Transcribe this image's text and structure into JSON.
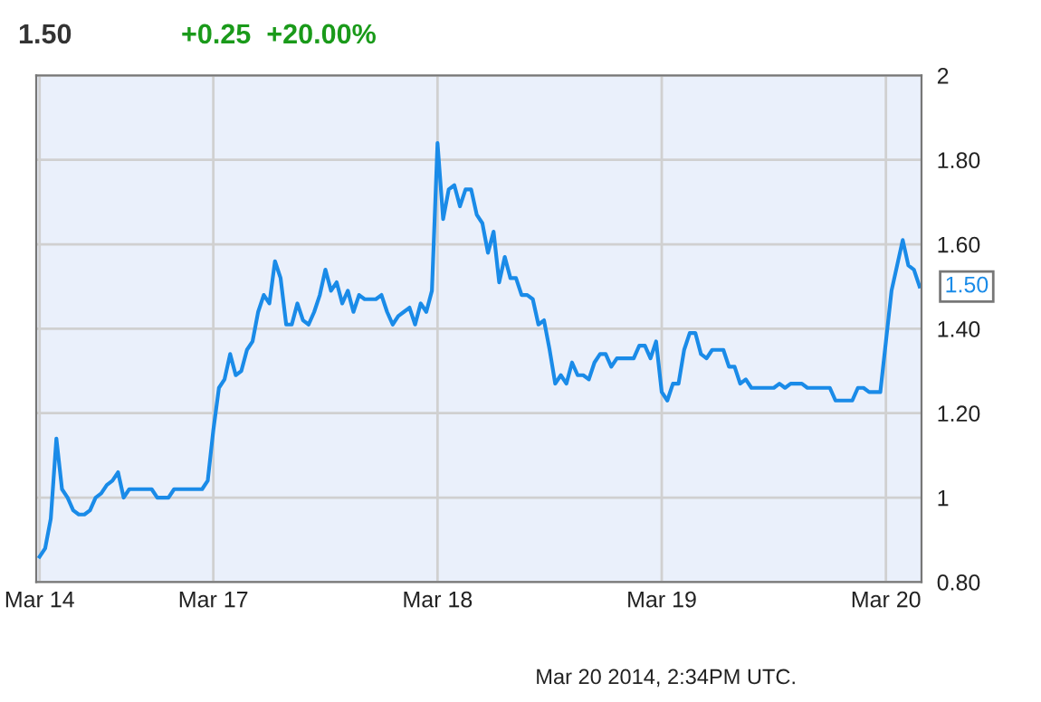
{
  "chart_data": {
    "type": "line",
    "title": "1.50",
    "subtitle": "+0.25  +20.00%",
    "categories": [
      "Mar 14",
      null,
      null,
      null,
      null,
      null,
      null,
      null,
      null,
      null,
      null,
      null,
      null,
      null,
      null,
      null,
      null,
      null,
      null,
      null,
      null,
      null,
      null,
      null,
      null,
      null,
      null,
      null,
      null,
      null,
      null,
      "Mar 17",
      null,
      null,
      null,
      null,
      null,
      null,
      null,
      null,
      null,
      null,
      null,
      null,
      null,
      null,
      null,
      null,
      null,
      null,
      null,
      null,
      null,
      null,
      null,
      null,
      null,
      null,
      null,
      null,
      null,
      null,
      null,
      null,
      null,
      null,
      null,
      null,
      null,
      null,
      null,
      "Mar 18",
      null,
      null,
      null,
      null,
      null,
      null,
      null,
      null,
      null,
      null,
      null,
      null,
      null,
      null,
      null,
      null,
      null,
      null,
      null,
      null,
      null,
      null,
      null,
      null,
      null,
      null,
      null,
      null,
      null,
      null,
      null,
      null,
      null,
      null,
      null,
      null,
      null,
      null,
      null,
      "Mar 19",
      null,
      null,
      null,
      null,
      null,
      null,
      null,
      null,
      null,
      null,
      null,
      null,
      null,
      null,
      null,
      null,
      null,
      null,
      null,
      null,
      null,
      null,
      null,
      null,
      null,
      null,
      null,
      null,
      null,
      null,
      null,
      null,
      null,
      null,
      null,
      null,
      null,
      null,
      null,
      "Mar 20",
      null,
      null,
      null,
      null,
      null,
      null
    ],
    "series": [
      {
        "color": "#1a8be8",
        "values": [
          0.86,
          0.88,
          0.95,
          1.14,
          1.02,
          1.0,
          0.97,
          0.96,
          0.96,
          0.97,
          1.0,
          1.01,
          1.03,
          1.04,
          1.06,
          1.0,
          1.02,
          1.02,
          1.02,
          1.02,
          1.02,
          1.0,
          1.0,
          1.0,
          1.02,
          1.02,
          1.02,
          1.02,
          1.02,
          1.02,
          1.04,
          1.16,
          1.26,
          1.28,
          1.34,
          1.29,
          1.3,
          1.35,
          1.37,
          1.44,
          1.48,
          1.46,
          1.56,
          1.52,
          1.41,
          1.41,
          1.46,
          1.42,
          1.41,
          1.44,
          1.48,
          1.54,
          1.49,
          1.51,
          1.46,
          1.49,
          1.44,
          1.48,
          1.47,
          1.47,
          1.47,
          1.48,
          1.44,
          1.41,
          1.43,
          1.44,
          1.45,
          1.41,
          1.46,
          1.44,
          1.49,
          1.84,
          1.66,
          1.73,
          1.74,
          1.69,
          1.73,
          1.73,
          1.67,
          1.65,
          1.58,
          1.63,
          1.51,
          1.57,
          1.52,
          1.52,
          1.48,
          1.48,
          1.47,
          1.41,
          1.42,
          1.35,
          1.27,
          1.29,
          1.27,
          1.32,
          1.29,
          1.29,
          1.28,
          1.32,
          1.34,
          1.34,
          1.31,
          1.33,
          1.33,
          1.33,
          1.33,
          1.36,
          1.36,
          1.33,
          1.37,
          1.25,
          1.23,
          1.27,
          1.27,
          1.35,
          1.39,
          1.39,
          1.34,
          1.33,
          1.35,
          1.35,
          1.35,
          1.31,
          1.31,
          1.27,
          1.28,
          1.26,
          1.26,
          1.26,
          1.26,
          1.26,
          1.27,
          1.26,
          1.27,
          1.27,
          1.27,
          1.26,
          1.26,
          1.26,
          1.26,
          1.26,
          1.23,
          1.23,
          1.23,
          1.23,
          1.26,
          1.26,
          1.25,
          1.25,
          1.25,
          1.37,
          1.49,
          1.55,
          1.61,
          1.55,
          1.54,
          1.5
        ]
      }
    ],
    "ylim": [
      0.8,
      2
    ],
    "yticks": [
      {
        "value": 0.8,
        "label": "0.80"
      },
      1,
      {
        "value": 1.2,
        "label": "1.20"
      },
      {
        "value": 1.4,
        "label": "1.40"
      },
      {
        "value": 1.6,
        "label": "1.60"
      },
      {
        "value": 1.8,
        "label": "1.80"
      },
      2
    ],
    "grid": true,
    "marker": "none",
    "line_style": "solid",
    "annotations": [
      "1.50",
      "Mar 20 2014, 2:34PM UTC."
    ]
  }
}
